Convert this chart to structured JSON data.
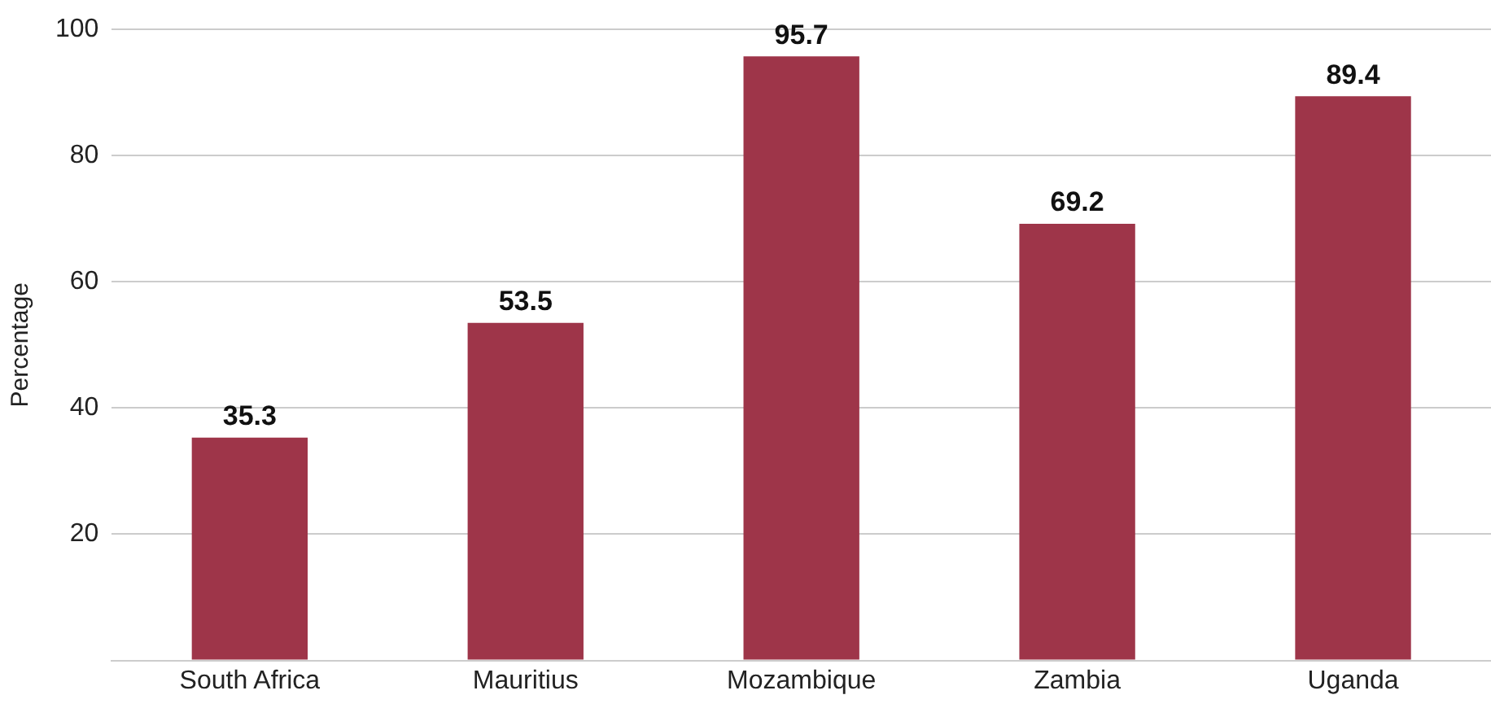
{
  "chart_data": {
    "type": "bar",
    "ylabel": "Percentage",
    "categories": [
      "South Africa",
      "Mauritius",
      "Mozambique",
      "Zambia",
      "Uganda"
    ],
    "values": [
      35.3,
      53.5,
      95.7,
      69.2,
      89.4
    ],
    "color": "#9e3549",
    "ylim": [
      0,
      100
    ],
    "yticks": [
      {
        "value": 0,
        "label": null
      },
      20,
      40,
      60,
      80,
      100
    ],
    "grid": "y",
    "data_labels": true
  }
}
